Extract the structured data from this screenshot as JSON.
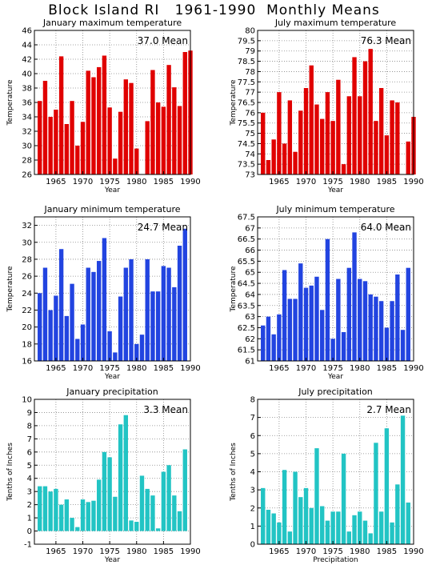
{
  "page": {
    "title": "Block Island RI   1961-1990  Monthly Means"
  },
  "colors": {
    "temperature_max": "#e00000",
    "temperature_min": "#2244e0",
    "precipitation": "#22c4c4",
    "grid": "#888888",
    "axis": "#000000"
  },
  "chart_data": [
    {
      "id": "jan-max",
      "type": "bar",
      "title": "January maximum temperature",
      "mean_label": "37.0 Mean",
      "ylabel": "Temperature",
      "xlabel": "Year",
      "x": [
        1962,
        1963,
        1964,
        1965,
        1966,
        1967,
        1968,
        1969,
        1970,
        1971,
        1972,
        1973,
        1974,
        1975,
        1976,
        1977,
        1978,
        1979,
        1980,
        1981,
        1982,
        1983,
        1984,
        1985,
        1986,
        1987,
        1988,
        1989,
        1990
      ],
      "values": [
        36.2,
        39.0,
        34.0,
        35.0,
        42.4,
        33.0,
        36.2,
        30.0,
        33.3,
        40.4,
        39.5,
        40.9,
        42.5,
        35.3,
        28.2,
        34.7,
        39.2,
        38.7,
        29.6,
        null,
        33.4,
        40.5,
        36.0,
        35.4,
        41.2,
        38.1,
        35.5,
        43.0,
        43.2
      ],
      "xlim": [
        1961,
        1990
      ],
      "ylim": [
        26,
        46
      ],
      "x_ticks": [
        1965,
        1970,
        1975,
        1980,
        1985,
        1990
      ],
      "y_ticks": [
        26,
        28,
        30,
        32,
        34,
        36,
        38,
        40,
        42,
        44,
        46
      ],
      "grid": true
    },
    {
      "id": "jul-max",
      "type": "bar",
      "title": "July maximum temperature",
      "mean_label": "76.3 Mean",
      "ylabel": "Temperature",
      "xlabel": "Year",
      "x": [
        1962,
        1963,
        1964,
        1965,
        1966,
        1967,
        1968,
        1969,
        1970,
        1971,
        1972,
        1973,
        1974,
        1975,
        1976,
        1977,
        1978,
        1979,
        1980,
        1981,
        1982,
        1983,
        1984,
        1985,
        1986,
        1987,
        1988,
        1989,
        1990
      ],
      "values": [
        76.0,
        73.7,
        74.7,
        77.0,
        74.5,
        76.6,
        74.1,
        76.1,
        77.2,
        78.3,
        76.4,
        75.7,
        77.0,
        75.6,
        77.6,
        73.5,
        76.8,
        78.7,
        76.8,
        78.5,
        79.1,
        75.6,
        77.2,
        74.9,
        76.6,
        76.5,
        null,
        74.6,
        75.8
      ],
      "xlim": [
        1961,
        1990
      ],
      "ylim": [
        73,
        80
      ],
      "x_ticks": [
        1965,
        1970,
        1975,
        1980,
        1985,
        1990
      ],
      "y_ticks": [
        73,
        73.5,
        74,
        74.5,
        75,
        75.5,
        76,
        76.5,
        77,
        77.5,
        78,
        78.5,
        79,
        79.5,
        80
      ],
      "grid": true
    },
    {
      "id": "jan-min",
      "type": "bar",
      "title": "January minimum temperature",
      "mean_label": "24.7 Mean",
      "ylabel": "Temperature",
      "xlabel": "Year",
      "x": [
        1962,
        1963,
        1964,
        1965,
        1966,
        1967,
        1968,
        1969,
        1970,
        1971,
        1972,
        1973,
        1974,
        1975,
        1976,
        1977,
        1978,
        1979,
        1980,
        1981,
        1982,
        1983,
        1984,
        1985,
        1986,
        1987,
        1988,
        1989,
        1990
      ],
      "values": [
        24.0,
        27.0,
        22.0,
        23.7,
        29.2,
        21.3,
        25.1,
        18.6,
        20.3,
        27.0,
        26.5,
        27.8,
        30.5,
        19.5,
        17.0,
        23.6,
        27.0,
        28.0,
        18.0,
        19.1,
        28.0,
        24.2,
        24.2,
        27.2,
        27.0,
        24.7,
        29.6,
        31.6,
        null
      ],
      "xlim": [
        1961,
        1990
      ],
      "ylim": [
        16,
        33
      ],
      "x_ticks": [
        1965,
        1970,
        1975,
        1980,
        1985,
        1990
      ],
      "y_ticks": [
        16,
        18,
        20,
        22,
        24,
        26,
        28,
        30,
        32
      ],
      "grid": true
    },
    {
      "id": "jul-min",
      "type": "bar",
      "title": "July minimum temperature",
      "mean_label": "64.0 Mean",
      "ylabel": "Temperature",
      "xlabel": "Year",
      "x": [
        1962,
        1963,
        1964,
        1965,
        1966,
        1967,
        1968,
        1969,
        1970,
        1971,
        1972,
        1973,
        1974,
        1975,
        1976,
        1977,
        1978,
        1979,
        1980,
        1981,
        1982,
        1983,
        1984,
        1985,
        1986,
        1987,
        1988,
        1989,
        1990
      ],
      "values": [
        62.6,
        63.0,
        62.2,
        63.1,
        65.1,
        63.8,
        63.8,
        65.4,
        64.3,
        64.4,
        64.8,
        63.3,
        66.5,
        62.0,
        64.7,
        62.3,
        65.2,
        66.8,
        64.7,
        64.6,
        64.0,
        63.9,
        63.7,
        62.5,
        63.7,
        64.9,
        62.4,
        65.2,
        null
      ],
      "xlim": [
        1961,
        1990
      ],
      "ylim": [
        61,
        67.5
      ],
      "x_ticks": [
        1965,
        1970,
        1975,
        1980,
        1985,
        1990
      ],
      "y_ticks": [
        61,
        61.5,
        62,
        62.5,
        63,
        63.5,
        64,
        64.5,
        65,
        65.5,
        66,
        66.5,
        67,
        67.5
      ],
      "grid": true
    },
    {
      "id": "jan-precip",
      "type": "bar",
      "title": "January precipitation",
      "mean_label": "3.3 Mean",
      "ylabel": "Tenths of Inches",
      "xlabel": "Year",
      "x": [
        1962,
        1963,
        1964,
        1965,
        1966,
        1967,
        1968,
        1969,
        1970,
        1971,
        1972,
        1973,
        1974,
        1975,
        1976,
        1977,
        1978,
        1979,
        1980,
        1981,
        1982,
        1983,
        1984,
        1985,
        1986,
        1987,
        1988,
        1989,
        1990
      ],
      "values": [
        3.4,
        3.4,
        3.0,
        3.2,
        2.0,
        2.4,
        1.0,
        0.3,
        2.4,
        2.2,
        2.3,
        3.9,
        6.0,
        5.6,
        2.6,
        8.1,
        8.8,
        0.8,
        0.7,
        4.2,
        3.2,
        2.7,
        0.2,
        4.5,
        5.0,
        2.7,
        1.5,
        6.2,
        null
      ],
      "xlim": [
        1961,
        1990
      ],
      "ylim": [
        -1,
        10
      ],
      "x_ticks": [
        1965,
        1970,
        1975,
        1980,
        1985,
        1990
      ],
      "y_ticks": [
        -1,
        0,
        1,
        2,
        3,
        4,
        5,
        6,
        7,
        8,
        9,
        10
      ],
      "grid": true
    },
    {
      "id": "jul-precip",
      "type": "bar",
      "title": "July precipitation",
      "mean_label": "2.7 Mean",
      "ylabel": "Tenths of Inches",
      "xlabel": "Precipitation",
      "x": [
        1962,
        1963,
        1964,
        1965,
        1966,
        1967,
        1968,
        1969,
        1970,
        1971,
        1972,
        1973,
        1974,
        1975,
        1976,
        1977,
        1978,
        1979,
        1980,
        1981,
        1982,
        1983,
        1984,
        1985,
        1986,
        1987,
        1988,
        1989,
        1990
      ],
      "values": [
        3.1,
        1.9,
        1.7,
        1.2,
        4.1,
        0.7,
        4.0,
        2.6,
        3.1,
        2.0,
        5.3,
        2.1,
        1.3,
        1.8,
        1.8,
        5.0,
        0.7,
        1.6,
        1.8,
        1.3,
        0.6,
        5.6,
        1.8,
        6.4,
        1.2,
        3.3,
        7.1,
        2.3,
        null
      ],
      "xlim": [
        1961,
        1990
      ],
      "ylim": [
        0,
        8
      ],
      "x_ticks": [
        1965,
        1970,
        1975,
        1980,
        1985,
        1990
      ],
      "y_ticks": [
        0,
        1,
        2,
        3,
        4,
        5,
        6,
        7,
        8
      ],
      "grid": true
    }
  ]
}
